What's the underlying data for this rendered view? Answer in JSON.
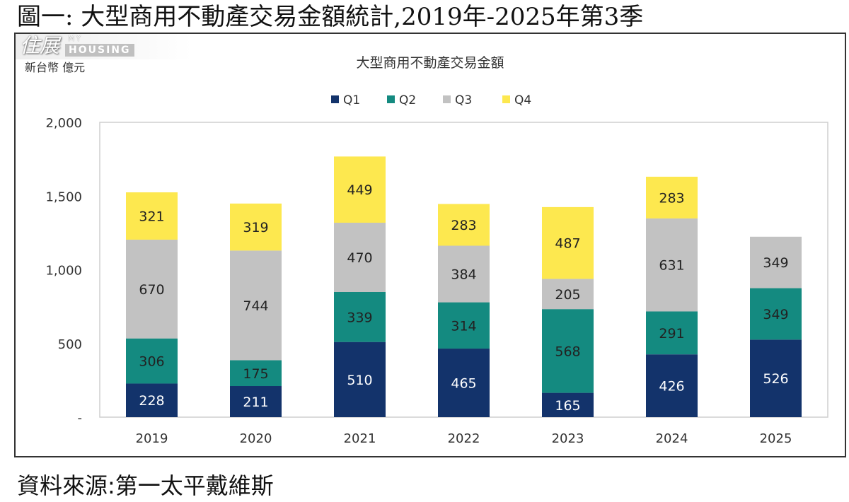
{
  "header": {
    "title": "圖一: 大型商用不動產交易金額統計,2019年-2025年第3季"
  },
  "watermark": {
    "chinese": "住展",
    "line1": "MY",
    "line2": "HOUSING"
  },
  "footer": {
    "source": "資料來源:第一太平戴維斯"
  },
  "chart_data": {
    "type": "bar",
    "stacked": true,
    "title": "大型商用不動產交易金額",
    "ylabel": "新台幣 億元",
    "xlabel": "",
    "ylim": [
      0,
      2000
    ],
    "yticks": [
      0,
      500,
      1000,
      1500,
      2000
    ],
    "ytick_labels": [
      "-",
      "500",
      "1,000",
      "1,500",
      "2,000"
    ],
    "grid": false,
    "legend": "top",
    "categories": [
      "2019",
      "2020",
      "2021",
      "2022",
      "2023",
      "2024",
      "2025"
    ],
    "series": [
      {
        "name": "Q1",
        "color": "#13336b",
        "label_color": "#ffffff",
        "values": [
          228,
          211,
          510,
          465,
          165,
          426,
          526
        ]
      },
      {
        "name": "Q2",
        "color": "#148a80",
        "label_color": "#222222",
        "values": [
          306,
          175,
          339,
          314,
          568,
          291,
          349
        ]
      },
      {
        "name": "Q3",
        "color": "#c2c2c2",
        "label_color": "#222222",
        "values": [
          670,
          744,
          470,
          384,
          205,
          631,
          349
        ]
      },
      {
        "name": "Q4",
        "color": "#fde84f",
        "label_color": "#222222",
        "values": [
          321,
          319,
          449,
          283,
          487,
          283,
          null
        ]
      }
    ]
  }
}
